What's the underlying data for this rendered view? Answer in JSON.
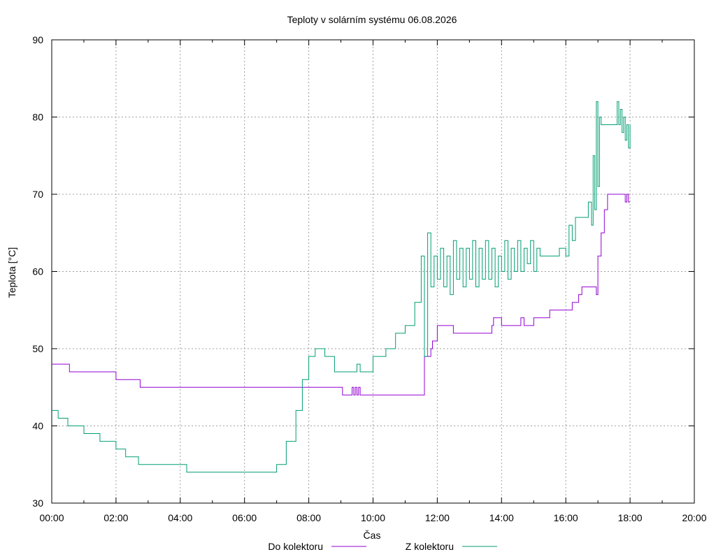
{
  "chart_data": {
    "type": "line",
    "title": "Teploty v solárním systému 06.08.2026",
    "xlabel": "Čas",
    "ylabel": "Teplota [°C]",
    "x_ticks": [
      "00:00",
      "02:00",
      "04:00",
      "06:00",
      "08:00",
      "10:00",
      "12:00",
      "14:00",
      "16:00",
      "18:00",
      "20:00"
    ],
    "xlim_hours": [
      0,
      20
    ],
    "ylim": [
      30,
      90
    ],
    "y_ticks": [
      30,
      40,
      50,
      60,
      70,
      80,
      90
    ],
    "grid": true,
    "legend_position": "bottom-center",
    "series": [
      {
        "name": "Do kolektoru",
        "color": "#9400d3",
        "x_hours": [
          0.0,
          0.5,
          0.55,
          0.75,
          1.0,
          1.5,
          1.9,
          2.0,
          2.7,
          2.75,
          3.5,
          4.0,
          5.0,
          6.0,
          7.0,
          8.0,
          9.0,
          9.05,
          9.3,
          9.35,
          9.4,
          9.45,
          9.5,
          9.55,
          9.6,
          9.7,
          10.0,
          11.0,
          11.55,
          11.6,
          11.8,
          11.85,
          12.0,
          12.2,
          12.5,
          13.0,
          13.5,
          13.7,
          13.75,
          14.0,
          14.5,
          14.6,
          14.7,
          15.0,
          15.3,
          15.5,
          15.9,
          16.1,
          16.2,
          16.4,
          16.5,
          16.9,
          16.95,
          17.0,
          17.1,
          17.2,
          17.3,
          17.5,
          17.8,
          17.85,
          17.9,
          17.95,
          18.0
        ],
        "y": [
          48,
          48,
          47,
          47,
          47,
          47,
          47,
          46,
          46,
          45,
          45,
          45,
          45,
          45,
          45,
          45,
          45,
          44,
          44,
          45,
          44,
          45,
          44,
          45,
          44,
          44,
          44,
          44,
          44,
          49,
          50,
          51,
          53,
          53,
          52,
          52,
          52,
          53,
          54,
          53,
          53,
          54,
          53,
          54,
          54,
          55,
          55,
          55,
          56,
          57,
          58,
          58,
          57,
          62,
          65,
          68,
          70,
          70,
          70,
          69,
          70,
          69,
          69
        ]
      },
      {
        "name": "Z kolektoru",
        "color": "#009e73",
        "x_hours": [
          0.0,
          0.2,
          0.5,
          1.0,
          1.5,
          2.0,
          2.3,
          2.7,
          3.5,
          4.0,
          4.2,
          5.0,
          6.0,
          6.7,
          7.0,
          7.3,
          7.6,
          7.8,
          8.0,
          8.2,
          8.5,
          8.8,
          9.0,
          9.4,
          9.5,
          9.6,
          10.0,
          10.4,
          10.7,
          11.0,
          11.3,
          11.5,
          11.6,
          11.7,
          11.8,
          11.9,
          12.0,
          12.1,
          12.2,
          12.3,
          12.4,
          12.5,
          12.6,
          12.7,
          12.8,
          12.9,
          13.0,
          13.1,
          13.2,
          13.3,
          13.4,
          13.5,
          13.6,
          13.7,
          13.8,
          13.9,
          14.0,
          14.1,
          14.2,
          14.3,
          14.4,
          14.5,
          14.6,
          14.7,
          14.8,
          14.9,
          15.0,
          15.1,
          15.2,
          15.5,
          15.8,
          16.0,
          16.1,
          16.2,
          16.3,
          16.5,
          16.7,
          16.8,
          16.85,
          16.9,
          16.95,
          17.0,
          17.05,
          17.1,
          17.2,
          17.4,
          17.6,
          17.65,
          17.7,
          17.75,
          17.8,
          17.85,
          17.9,
          17.95,
          18.0
        ],
        "y": [
          42,
          41,
          40,
          39,
          38,
          37,
          36,
          35,
          35,
          35,
          34,
          34,
          34,
          34,
          35,
          38,
          42,
          46,
          49,
          50,
          49,
          47,
          47,
          47,
          48,
          47,
          49,
          50,
          52,
          53,
          56,
          62,
          49,
          65,
          58,
          62,
          59,
          63,
          58,
          62,
          57,
          64,
          59,
          63,
          58,
          63,
          59,
          64,
          58,
          63,
          59,
          64,
          59,
          63,
          58,
          62,
          60,
          64,
          59,
          63,
          60,
          64,
          60,
          63,
          61,
          64,
          60,
          63,
          62,
          62,
          63,
          62,
          66,
          64,
          67,
          67,
          69,
          66,
          75,
          68,
          82,
          71,
          80,
          79,
          79,
          79,
          82,
          79,
          81,
          78,
          80,
          77,
          79,
          76,
          79
        ]
      }
    ]
  }
}
